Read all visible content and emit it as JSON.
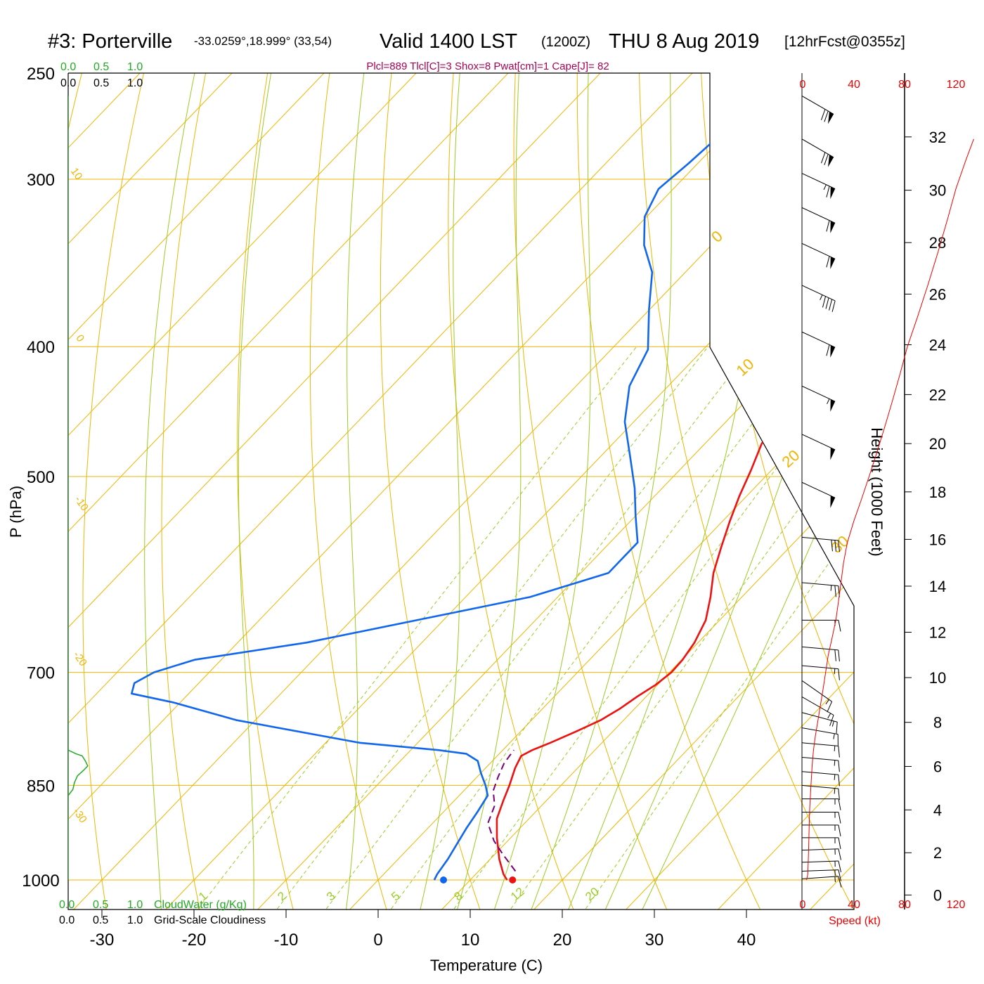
{
  "header": {
    "station": "#3: Porterville",
    "coords": "-33.0259°,18.999° (33,54)",
    "valid_main": "Valid 1400 LST",
    "valid_z": "(1200Z)",
    "valid_date": "THU 8 Aug 2019",
    "forecast": "[12hrFcst@0355z]",
    "indices": "Plcl=889 Tlcl[C]=3 Shox=8 Pwat[cm]=1 Cape[J]= 82"
  },
  "colors": {
    "temperature": "#ee1111",
    "dewpoint": "#1166ee",
    "parcel": "#770077",
    "isotherm": "#f0b400",
    "dry_adiabat": "#f0b400",
    "moist_adiabat": "#99cc22",
    "mixing_ratio": "#99cc22",
    "cloud": "#22aa22",
    "speed": "#ee0000",
    "indices": "#aa0055"
  },
  "cloud_scale": {
    "top_green": [
      "0.0",
      "0.5",
      "1.0"
    ],
    "top_black": [
      "0.0",
      "0.5",
      "1.0"
    ],
    "bottom_green": [
      "0.0",
      "0.5",
      "1.0"
    ],
    "bottom_green_label": "CloudWater (g/Kg)",
    "bottom_black": [
      "0.0",
      "0.5",
      "1.0"
    ],
    "bottom_black_label": "Grid-Scale Cloudiness"
  },
  "speed_scale": {
    "top": [
      "0",
      "40",
      "80",
      "120"
    ],
    "bottom": [
      "0",
      "40",
      "80",
      "120"
    ],
    "label": "Speed (kt)"
  },
  "height_axis": {
    "label": "Height (1000 Feet)",
    "ticks": [
      "0",
      "2",
      "4",
      "6",
      "8",
      "10",
      "12",
      "14",
      "16",
      "18",
      "20",
      "22",
      "24",
      "26",
      "28",
      "30",
      "32"
    ]
  },
  "isotherm_labels": [
    "10",
    "0",
    "-10",
    "-20",
    "-30",
    "0",
    "10",
    "20",
    "30"
  ],
  "mixing_ratio_labels": [
    "1",
    "2",
    "3",
    "5",
    "8",
    "12",
    "20"
  ],
  "chart_data": {
    "type": "line",
    "title": "",
    "xlabel": "Temperature (C)",
    "ylabel": "P (hPa)",
    "xlim": [
      -33,
      47
    ],
    "ylim": [
      1030,
      250
    ],
    "y_scale": "log",
    "x_ticks": [
      "-30",
      "-20",
      "-10",
      "0",
      "10",
      "20",
      "30",
      "40"
    ],
    "y_ticks": [
      "250",
      "300",
      "400",
      "500",
      "700",
      "850",
      "1000"
    ],
    "series": [
      {
        "role": "temperature",
        "points": [
          [
            14.0,
            1000
          ],
          [
            13.0,
            990
          ],
          [
            11.0,
            965
          ],
          [
            8.5,
            930
          ],
          [
            6.5,
            900
          ],
          [
            5.3,
            872
          ],
          [
            4.4,
            850
          ],
          [
            3.2,
            825
          ],
          [
            2.6,
            808
          ],
          [
            3.2,
            800
          ],
          [
            4.4,
            790
          ],
          [
            6.0,
            775
          ],
          [
            7.5,
            760
          ],
          [
            8.4,
            745
          ],
          [
            9.0,
            730
          ],
          [
            9.8,
            715
          ],
          [
            10.2,
            700
          ],
          [
            10.1,
            685
          ],
          [
            9.6,
            665
          ],
          [
            8.5,
            640
          ],
          [
            6.6,
            615
          ],
          [
            4.4,
            590
          ],
          [
            2.6,
            565
          ],
          [
            0.8,
            540
          ],
          [
            -0.8,
            517
          ],
          [
            -2.2,
            495
          ],
          [
            -3.8,
            473
          ],
          [
            -5.0,
            451
          ],
          [
            -6.0,
            430
          ],
          [
            -6.8,
            408
          ],
          [
            -7.6,
            387
          ],
          [
            -8.3,
            367
          ],
          [
            -9.2,
            347
          ],
          [
            -10.0,
            325
          ],
          [
            -11.0,
            305
          ],
          [
            -12.1,
            285
          ],
          [
            -13.6,
            268
          ],
          [
            -14.6,
            260
          ]
        ]
      },
      {
        "role": "dewpoint",
        "points": [
          [
            6.1,
            1000
          ],
          [
            5.8,
            990
          ],
          [
            5.4,
            965
          ],
          [
            4.8,
            940
          ],
          [
            4.2,
            915
          ],
          [
            3.7,
            890
          ],
          [
            3.1,
            865
          ],
          [
            1.8,
            850
          ],
          [
            0.0,
            832
          ],
          [
            -1.6,
            815
          ],
          [
            -3.6,
            805
          ],
          [
            -7.0,
            800
          ],
          [
            -16.3,
            790
          ],
          [
            -32.0,
            760
          ],
          [
            -40.8,
            737
          ],
          [
            -46.2,
            726
          ],
          [
            -47.0,
            713
          ],
          [
            -46.0,
            700
          ],
          [
            -42.9,
            685
          ],
          [
            -32.5,
            665
          ],
          [
            -22.9,
            640
          ],
          [
            -13.0,
            615
          ],
          [
            -7.0,
            590
          ],
          [
            -7.0,
            560
          ],
          [
            -10.0,
            535
          ],
          [
            -13.0,
            510
          ],
          [
            -16.8,
            483
          ],
          [
            -21.0,
            455
          ],
          [
            -24.2,
            428
          ],
          [
            -26.0,
            402
          ],
          [
            -30.1,
            375
          ],
          [
            -33.6,
            352
          ],
          [
            -37.3,
            336
          ],
          [
            -40.2,
            320
          ],
          [
            -41.6,
            305
          ],
          [
            -41.0,
            292
          ],
          [
            -40.6,
            280
          ],
          [
            -39.5,
            268
          ],
          [
            -38.2,
            260
          ]
        ]
      },
      {
        "role": "parcel",
        "points": [
          [
            14.0,
            985
          ],
          [
            11.0,
            958
          ],
          [
            8.5,
            935
          ],
          [
            6.0,
            907
          ],
          [
            4.9,
            880
          ],
          [
            3.2,
            858
          ],
          [
            2.3,
            838
          ],
          [
            1.5,
            818
          ],
          [
            1.2,
            800
          ]
        ]
      }
    ],
    "surface": {
      "temperature": 14.6,
      "dewpoint": 7.1,
      "pressure": 1000
    },
    "cloud_water_profile": [
      [
        0.0,
        800
      ],
      [
        0.1,
        805
      ],
      [
        0.18,
        808
      ],
      [
        0.22,
        815
      ],
      [
        0.25,
        822
      ],
      [
        0.2,
        828
      ],
      [
        0.12,
        836
      ],
      [
        0.08,
        846
      ],
      [
        0.06,
        856
      ],
      [
        0.0,
        865
      ]
    ],
    "winds": [
      {
        "p": 260,
        "dir": 300,
        "spd": 70
      },
      {
        "p": 280,
        "dir": 300,
        "spd": 70
      },
      {
        "p": 297,
        "dir": 295,
        "spd": 65
      },
      {
        "p": 315,
        "dir": 295,
        "spd": 60
      },
      {
        "p": 335,
        "dir": 295,
        "spd": 60
      },
      {
        "p": 360,
        "dir": 295,
        "spd": 45
      },
      {
        "p": 390,
        "dir": 295,
        "spd": 60
      },
      {
        "p": 428,
        "dir": 295,
        "spd": 55
      },
      {
        "p": 465,
        "dir": 295,
        "spd": 50
      },
      {
        "p": 505,
        "dir": 295,
        "spd": 50
      },
      {
        "p": 555,
        "dir": 275,
        "spd": 30
      },
      {
        "p": 600,
        "dir": 275,
        "spd": 25
      },
      {
        "p": 640,
        "dir": 270,
        "spd": 15
      },
      {
        "p": 670,
        "dir": 275,
        "spd": 20
      },
      {
        "p": 692,
        "dir": 275,
        "spd": 15
      },
      {
        "p": 710,
        "dir": 305,
        "spd": 15
      },
      {
        "p": 730,
        "dir": 300,
        "spd": 15
      },
      {
        "p": 750,
        "dir": 285,
        "spd": 15
      },
      {
        "p": 770,
        "dir": 280,
        "spd": 15
      },
      {
        "p": 790,
        "dir": 275,
        "spd": 15
      },
      {
        "p": 810,
        "dir": 275,
        "spd": 15
      },
      {
        "p": 830,
        "dir": 275,
        "spd": 15
      },
      {
        "p": 850,
        "dir": 275,
        "spd": 15
      },
      {
        "p": 870,
        "dir": 270,
        "spd": 15
      },
      {
        "p": 890,
        "dir": 270,
        "spd": 15
      },
      {
        "p": 910,
        "dir": 270,
        "spd": 15
      },
      {
        "p": 930,
        "dir": 270,
        "spd": 15
      },
      {
        "p": 950,
        "dir": 268,
        "spd": 15
      },
      {
        "p": 970,
        "dir": 268,
        "spd": 15
      },
      {
        "p": 985,
        "dir": 268,
        "spd": 15
      },
      {
        "p": 998,
        "dir": 266,
        "spd": 15
      }
    ],
    "speed_profile_kt": [
      [
        3,
        1000
      ],
      [
        4,
        990
      ],
      [
        4.5,
        960
      ],
      [
        5,
        920
      ],
      [
        5.5,
        885
      ],
      [
        6.5,
        850
      ],
      [
        7.5,
        820
      ],
      [
        8.5,
        800
      ],
      [
        10,
        780
      ],
      [
        12,
        760
      ],
      [
        14,
        740
      ],
      [
        16,
        720
      ],
      [
        18,
        700
      ],
      [
        20,
        680
      ],
      [
        23,
        660
      ],
      [
        26,
        640
      ],
      [
        28,
        620
      ],
      [
        30,
        600
      ],
      [
        32,
        580
      ],
      [
        35,
        560
      ],
      [
        40,
        540
      ],
      [
        46,
        520
      ],
      [
        52,
        500
      ],
      [
        58,
        480
      ],
      [
        64,
        460
      ],
      [
        70,
        440
      ],
      [
        76,
        420
      ],
      [
        82,
        400
      ],
      [
        90,
        380
      ],
      [
        98,
        360
      ],
      [
        106,
        340
      ],
      [
        114,
        320
      ],
      [
        120,
        305
      ],
      [
        128,
        290
      ],
      [
        134,
        280
      ]
    ]
  }
}
